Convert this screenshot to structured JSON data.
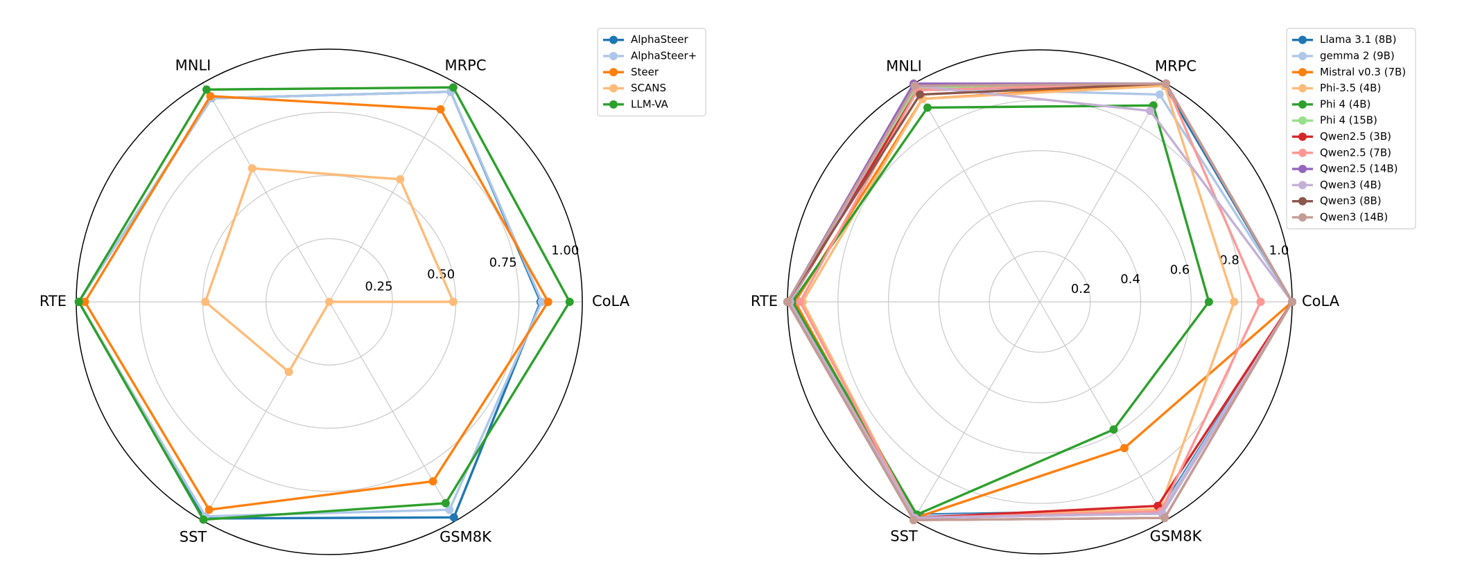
{
  "chart_data": [
    {
      "type": "radar",
      "categories": [
        "CoLA",
        "MRPC",
        "MNLI",
        "RTE",
        "SST",
        "GSM8K"
      ],
      "rlim": [
        0,
        1
      ],
      "rticks": [
        0.25,
        {
          "value": 0.5,
          "label": "0.50"
        },
        0.75,
        {
          "value": 1,
          "label": "1.00"
        }
      ],
      "series": [
        {
          "name": "AlphaSteer",
          "color": "#1f77b4",
          "values": [
            0.835,
            0.96,
            0.93,
            0.99,
            0.99,
            0.985
          ]
        },
        {
          "name": "AlphaSteer+",
          "color": "#aec7e8",
          "values": [
            0.84,
            0.96,
            0.93,
            0.99,
            0.98,
            0.95
          ]
        },
        {
          "name": "Steer",
          "color": "#ff7f0e",
          "values": [
            0.865,
            0.88,
            0.94,
            0.966,
            0.95,
            0.82
          ]
        },
        {
          "name": "SCANS",
          "color": "#ffbb78",
          "values": [
            0.49,
            0.56,
            0.61,
            0.49,
            0.32,
            0
          ]
        },
        {
          "name": "LLM-VA",
          "color": "#2ca02c",
          "values": [
            0.95,
            0.98,
            0.97,
            0.99,
            0.995,
            0.92
          ]
        }
      ]
    },
    {
      "type": "radar",
      "categories": [
        "CoLA",
        "MRPC",
        "MNLI",
        "RTE",
        "SST",
        "GSM8K"
      ],
      "rlim": [
        0,
        1
      ],
      "rticks": [
        0.2,
        0.4,
        0.6,
        0.8,
        {
          "value": 1,
          "label": "1.0"
        }
      ],
      "series": [
        {
          "name": "Llama 3.1 (8B)",
          "color": "#1f77b4",
          "values": [
            1,
            0.99,
            0.97,
            1,
            0.975,
            0.955
          ]
        },
        {
          "name": "gemma 2 (9B)",
          "color": "#aec7e8",
          "values": [
            1,
            0.95,
            0.98,
            0.99,
            0.98,
            0.96
          ]
        },
        {
          "name": "Mistral v0.3 (7B)",
          "color": "#ff7f0e",
          "values": [
            1,
            1,
            0.93,
            0.97,
            0.99,
            0.67
          ]
        },
        {
          "name": "Phi-3.5 (4B)",
          "color": "#ffbb78",
          "values": [
            0.77,
            0.99,
            0.93,
            0.94,
            0.99,
            0.95
          ]
        },
        {
          "name": "Phi 4 (4B)",
          "color": "#2ca02c",
          "values": [
            0.67,
            0.9,
            0.89,
            0.98,
            0.975,
            0.585
          ]
        },
        {
          "name": "Phi 4 (15B)",
          "color": "#98df8a",
          "values": [
            1,
            1,
            0.98,
            0.99,
            0.99,
            0.97
          ]
        },
        {
          "name": "Qwen2.5 (3B)",
          "color": "#d62728",
          "values": [
            1,
            1,
            0.97,
            0.99,
            0.99,
            0.935
          ]
        },
        {
          "name": "Qwen2.5 (7B)",
          "color": "#ff9896",
          "values": [
            0.875,
            1,
            0.97,
            0.95,
            0.99,
            0.96
          ]
        },
        {
          "name": "Qwen2.5 (14B)",
          "color": "#9467bd",
          "values": [
            1,
            1,
            1,
            1,
            0.99,
            0.97
          ]
        },
        {
          "name": "Qwen3 (4B)",
          "color": "#c5b0d5",
          "values": [
            1,
            0.875,
            0.99,
            0.99,
            0.99,
            0.97
          ]
        },
        {
          "name": "Qwen3 (8B)",
          "color": "#8c564b",
          "values": [
            1,
            1,
            0.95,
            1,
            1,
            0.99
          ]
        },
        {
          "name": "Qwen3 (14B)",
          "color": "#c49c94",
          "values": [
            1,
            1,
            0.99,
            1,
            1,
            0.99
          ]
        }
      ]
    }
  ]
}
